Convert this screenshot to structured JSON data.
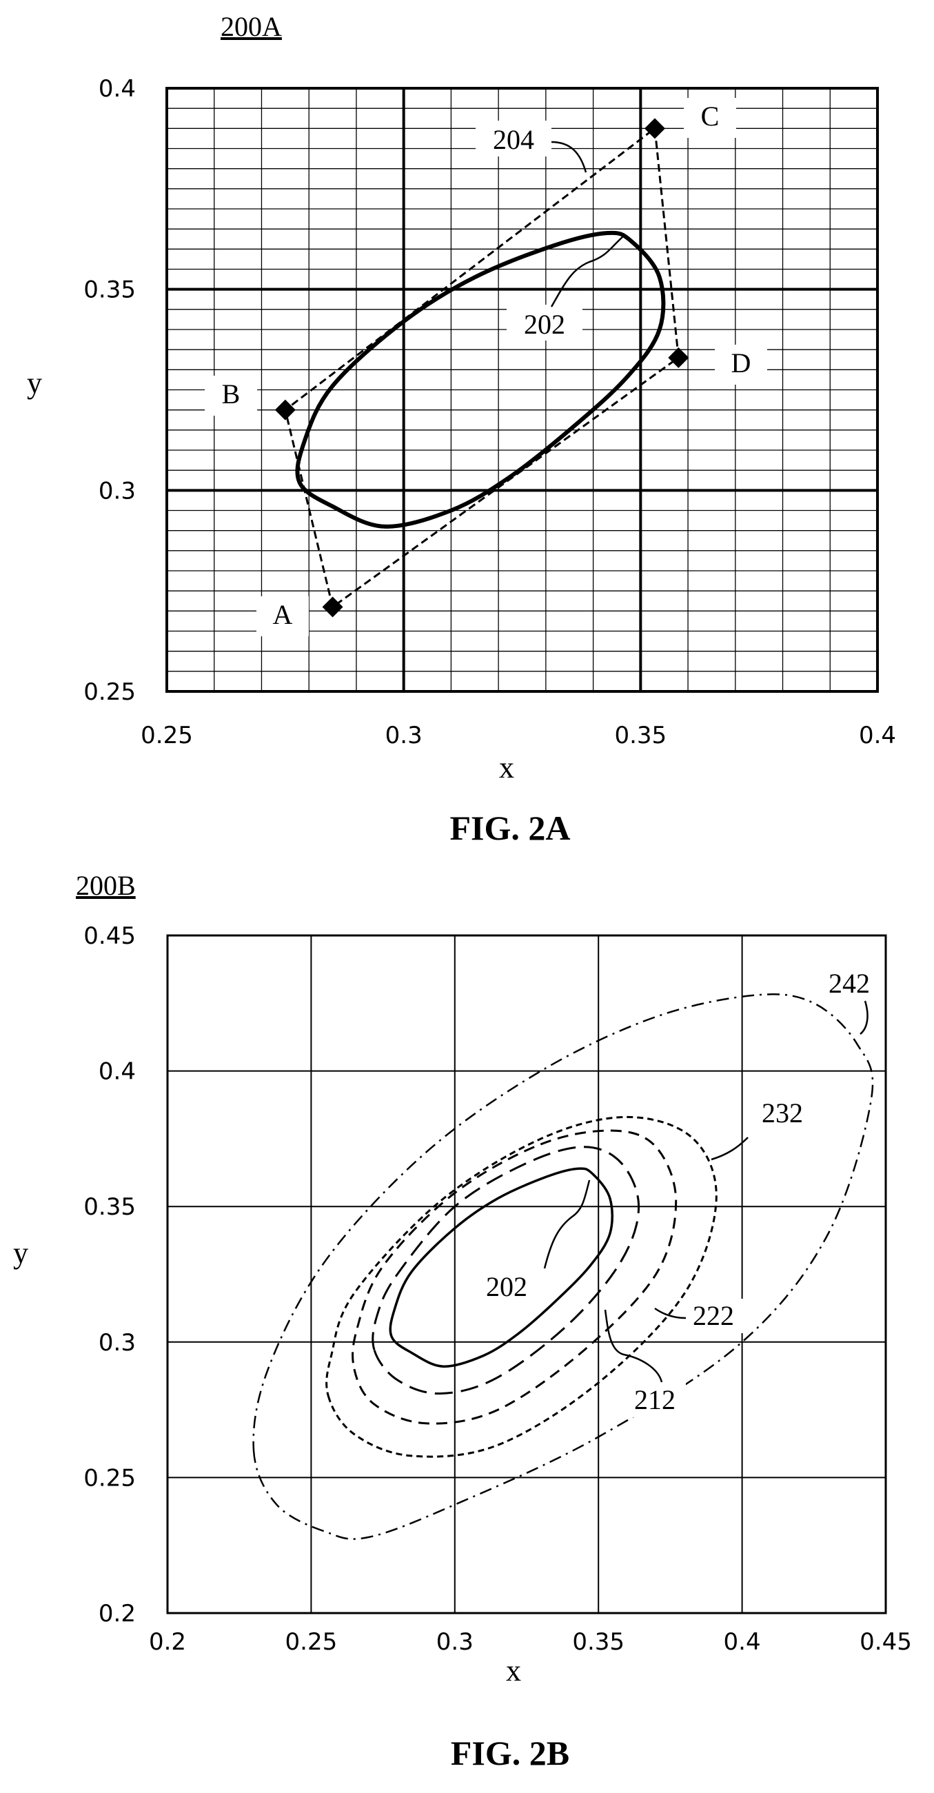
{
  "figures": [
    {
      "id": "2A",
      "ref": "200A",
      "caption": "FIG. 2A",
      "xlabel": "x",
      "ylabel": "y",
      "x_ticks": [
        "0.25",
        "0.3",
        "0.35",
        "0.4"
      ],
      "y_ticks": [
        "0.4",
        "0.35",
        "0.3",
        "0.25"
      ],
      "polygon_label": "204",
      "ellipse_label": "202",
      "vertex_labels": [
        "A",
        "B",
        "C",
        "D"
      ]
    },
    {
      "id": "2B",
      "ref": "200B",
      "caption": "FIG. 2B",
      "xlabel": "x",
      "ylabel": "y",
      "x_ticks": [
        "0.2",
        "0.25",
        "0.3",
        "0.35",
        "0.4",
        "0.45"
      ],
      "y_ticks": [
        "0.45",
        "0.4",
        "0.35",
        "0.3",
        "0.25",
        "0.2"
      ],
      "contour_labels": [
        "202",
        "212",
        "222",
        "232",
        "242"
      ]
    }
  ],
  "chart_data": [
    {
      "type": "scatter",
      "xlabel": "x",
      "ylabel": "y",
      "xlim": [
        0.25,
        0.4
      ],
      "ylim": [
        0.25,
        0.4
      ],
      "grid": true,
      "series": [
        {
          "name": "204",
          "style": "dashed quadrilateral",
          "points": [
            {
              "label": "A",
              "x": 0.285,
              "y": 0.271
            },
            {
              "label": "B",
              "x": 0.275,
              "y": 0.32
            },
            {
              "label": "C",
              "x": 0.353,
              "y": 0.39
            },
            {
              "label": "D",
              "x": 0.358,
              "y": 0.333
            }
          ]
        },
        {
          "name": "202",
          "style": "solid closed curve",
          "points": [
            {
              "x": 0.278,
              "y": 0.302
            },
            {
              "x": 0.285,
              "y": 0.296
            },
            {
              "x": 0.296,
              "y": 0.291
            },
            {
              "x": 0.31,
              "y": 0.295
            },
            {
              "x": 0.322,
              "y": 0.303
            },
            {
              "x": 0.335,
              "y": 0.315
            },
            {
              "x": 0.347,
              "y": 0.328
            },
            {
              "x": 0.354,
              "y": 0.34
            },
            {
              "x": 0.354,
              "y": 0.353
            },
            {
              "x": 0.348,
              "y": 0.362
            },
            {
              "x": 0.343,
              "y": 0.364
            },
            {
              "x": 0.332,
              "y": 0.361
            },
            {
              "x": 0.315,
              "y": 0.353
            },
            {
              "x": 0.3,
              "y": 0.342
            },
            {
              "x": 0.285,
              "y": 0.326
            },
            {
              "x": 0.279,
              "y": 0.312
            }
          ]
        }
      ]
    },
    {
      "type": "line",
      "xlabel": "x",
      "ylabel": "y",
      "xlim": [
        0.2,
        0.45
      ],
      "ylim": [
        0.2,
        0.45
      ],
      "grid": true,
      "series": [
        {
          "name": "202",
          "style": "solid",
          "points": [
            {
              "x": 0.278,
              "y": 0.302
            },
            {
              "x": 0.285,
              "y": 0.296
            },
            {
              "x": 0.296,
              "y": 0.291
            },
            {
              "x": 0.31,
              "y": 0.295
            },
            {
              "x": 0.322,
              "y": 0.303
            },
            {
              "x": 0.335,
              "y": 0.315
            },
            {
              "x": 0.347,
              "y": 0.328
            },
            {
              "x": 0.354,
              "y": 0.34
            },
            {
              "x": 0.354,
              "y": 0.353
            },
            {
              "x": 0.348,
              "y": 0.362
            },
            {
              "x": 0.343,
              "y": 0.364
            },
            {
              "x": 0.332,
              "y": 0.361
            },
            {
              "x": 0.315,
              "y": 0.353
            },
            {
              "x": 0.3,
              "y": 0.342
            },
            {
              "x": 0.285,
              "y": 0.326
            },
            {
              "x": 0.279,
              "y": 0.312
            }
          ]
        },
        {
          "name": "212",
          "style": "long dash",
          "points": [
            {
              "x": 0.272,
              "y": 0.297
            },
            {
              "x": 0.28,
              "y": 0.286
            },
            {
              "x": 0.295,
              "y": 0.281
            },
            {
              "x": 0.315,
              "y": 0.287
            },
            {
              "x": 0.34,
              "y": 0.307
            },
            {
              "x": 0.358,
              "y": 0.33
            },
            {
              "x": 0.364,
              "y": 0.35
            },
            {
              "x": 0.358,
              "y": 0.366
            },
            {
              "x": 0.345,
              "y": 0.372
            },
            {
              "x": 0.325,
              "y": 0.366
            },
            {
              "x": 0.3,
              "y": 0.35
            },
            {
              "x": 0.28,
              "y": 0.325
            },
            {
              "x": 0.273,
              "y": 0.31
            }
          ]
        },
        {
          "name": "222",
          "style": "short dash",
          "points": [
            {
              "x": 0.265,
              "y": 0.29
            },
            {
              "x": 0.272,
              "y": 0.277
            },
            {
              "x": 0.29,
              "y": 0.27
            },
            {
              "x": 0.315,
              "y": 0.275
            },
            {
              "x": 0.345,
              "y": 0.297
            },
            {
              "x": 0.37,
              "y": 0.325
            },
            {
              "x": 0.377,
              "y": 0.352
            },
            {
              "x": 0.37,
              "y": 0.372
            },
            {
              "x": 0.355,
              "y": 0.378
            },
            {
              "x": 0.33,
              "y": 0.373
            },
            {
              "x": 0.3,
              "y": 0.355
            },
            {
              "x": 0.275,
              "y": 0.328
            },
            {
              "x": 0.266,
              "y": 0.305
            }
          ]
        },
        {
          "name": "232",
          "style": "fine dash",
          "points": [
            {
              "x": 0.256,
              "y": 0.28
            },
            {
              "x": 0.265,
              "y": 0.266
            },
            {
              "x": 0.285,
              "y": 0.258
            },
            {
              "x": 0.315,
              "y": 0.262
            },
            {
              "x": 0.35,
              "y": 0.285
            },
            {
              "x": 0.38,
              "y": 0.318
            },
            {
              "x": 0.391,
              "y": 0.352
            },
            {
              "x": 0.383,
              "y": 0.375
            },
            {
              "x": 0.36,
              "y": 0.383
            },
            {
              "x": 0.33,
              "y": 0.375
            },
            {
              "x": 0.295,
              "y": 0.352
            },
            {
              "x": 0.265,
              "y": 0.318
            },
            {
              "x": 0.257,
              "y": 0.295
            }
          ]
        },
        {
          "name": "242",
          "style": "dash-dot",
          "points": [
            {
              "x": 0.23,
              "y": 0.26
            },
            {
              "x": 0.238,
              "y": 0.24
            },
            {
              "x": 0.255,
              "y": 0.23
            },
            {
              "x": 0.27,
              "y": 0.228
            },
            {
              "x": 0.3,
              "y": 0.24
            },
            {
              "x": 0.35,
              "y": 0.265
            },
            {
              "x": 0.4,
              "y": 0.3
            },
            {
              "x": 0.43,
              "y": 0.34
            },
            {
              "x": 0.445,
              "y": 0.39
            },
            {
              "x": 0.44,
              "y": 0.41
            },
            {
              "x": 0.425,
              "y": 0.425
            },
            {
              "x": 0.405,
              "y": 0.428
            },
            {
              "x": 0.37,
              "y": 0.42
            },
            {
              "x": 0.33,
              "y": 0.4
            },
            {
              "x": 0.29,
              "y": 0.37
            },
            {
              "x": 0.255,
              "y": 0.33
            },
            {
              "x": 0.235,
              "y": 0.29
            }
          ]
        }
      ]
    }
  ]
}
